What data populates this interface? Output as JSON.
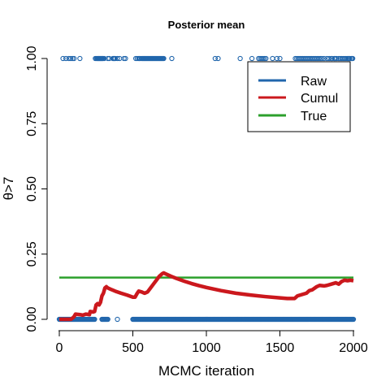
{
  "chart_data": {
    "type": "scatter",
    "title": "Posterior mean",
    "xlabel": "MCMC iteration",
    "ylabel": "θ>7",
    "xlim": [
      0,
      2000
    ],
    "ylim": [
      0,
      1
    ],
    "x_ticks": [
      "0",
      "500",
      "1000",
      "1500",
      "2000"
    ],
    "y_ticks": [
      "0.00",
      "0.25",
      "0.50",
      "0.75",
      "1.00"
    ],
    "legend": {
      "position": "top-right"
    },
    "series": [
      {
        "name": "Raw",
        "kind": "points",
        "color": "#2166ac",
        "x_at_one": [
          25,
          45,
          65,
          78,
          90,
          100,
          140,
          245,
          252,
          258,
          262,
          266,
          270,
          274,
          278,
          282,
          286,
          290,
          294,
          298,
          305,
          330,
          340,
          365,
          370,
          375,
          380,
          395,
          410,
          440,
          450,
          520,
          530,
          540,
          545,
          550,
          560,
          565,
          570,
          575,
          580,
          585,
          590,
          595,
          600,
          605,
          610,
          615,
          620,
          625,
          630,
          635,
          640,
          645,
          650,
          655,
          660,
          665,
          670,
          675,
          680,
          685,
          690,
          695,
          700,
          705,
          710,
          765,
          1060,
          1080,
          1230,
          1310,
          1355,
          1365,
          1375,
          1385,
          1395,
          1405,
          1450,
          1480,
          1500,
          1605,
          1615,
          1625,
          1635,
          1645,
          1655,
          1665,
          1675,
          1685,
          1695,
          1705,
          1715,
          1725,
          1735,
          1745,
          1755,
          1765,
          1775,
          1785,
          1800,
          1820,
          1835,
          1850,
          1855,
          1870,
          1875,
          1885,
          1900,
          1910,
          1920,
          1930,
          1940,
          1950,
          1960,
          1965,
          1970,
          1975,
          1985,
          1990,
          1995
        ],
        "zero_segments": [
          [
            0,
            240
          ],
          [
            290,
            330
          ],
          [
            500,
            2000
          ]
        ],
        "extra_points": [
          {
            "x": 395,
            "y": 0
          }
        ]
      },
      {
        "name": "Cumul",
        "kind": "line",
        "color": "#cb181d",
        "x": [
          0,
          80,
          100,
          110,
          140,
          160,
          180,
          205,
          210,
          230,
          240,
          250,
          260,
          270,
          280,
          290,
          300,
          310,
          320,
          330,
          350,
          380,
          420,
          460,
          500,
          515,
          530,
          540,
          560,
          580,
          600,
          620,
          640,
          660,
          680,
          700,
          710,
          720,
          760,
          800,
          850,
          900,
          950,
          1000,
          1100,
          1200,
          1300,
          1400,
          1500,
          1550,
          1600,
          1620,
          1650,
          1680,
          1700,
          1720,
          1750,
          1770,
          1800,
          1820,
          1850,
          1880,
          1900,
          1920,
          1940,
          1960,
          1980,
          2000
        ],
        "y": [
          0.0,
          0.0,
          0.01,
          0.02,
          0.018,
          0.016,
          0.02,
          0.018,
          0.03,
          0.028,
          0.03,
          0.055,
          0.06,
          0.055,
          0.065,
          0.09,
          0.1,
          0.12,
          0.125,
          0.12,
          0.115,
          0.108,
          0.1,
          0.093,
          0.085,
          0.085,
          0.1,
          0.108,
          0.105,
          0.1,
          0.105,
          0.12,
          0.135,
          0.15,
          0.165,
          0.175,
          0.178,
          0.175,
          0.165,
          0.156,
          0.146,
          0.137,
          0.129,
          0.122,
          0.11,
          0.1,
          0.093,
          0.087,
          0.082,
          0.08,
          0.08,
          0.09,
          0.095,
          0.1,
          0.11,
          0.113,
          0.125,
          0.13,
          0.128,
          0.13,
          0.135,
          0.14,
          0.135,
          0.145,
          0.15,
          0.148,
          0.15,
          0.148
        ]
      },
      {
        "name": "True",
        "kind": "line",
        "color": "#2ca02c",
        "x": [
          0,
          2000
        ],
        "y": [
          0.16,
          0.16
        ]
      }
    ]
  }
}
